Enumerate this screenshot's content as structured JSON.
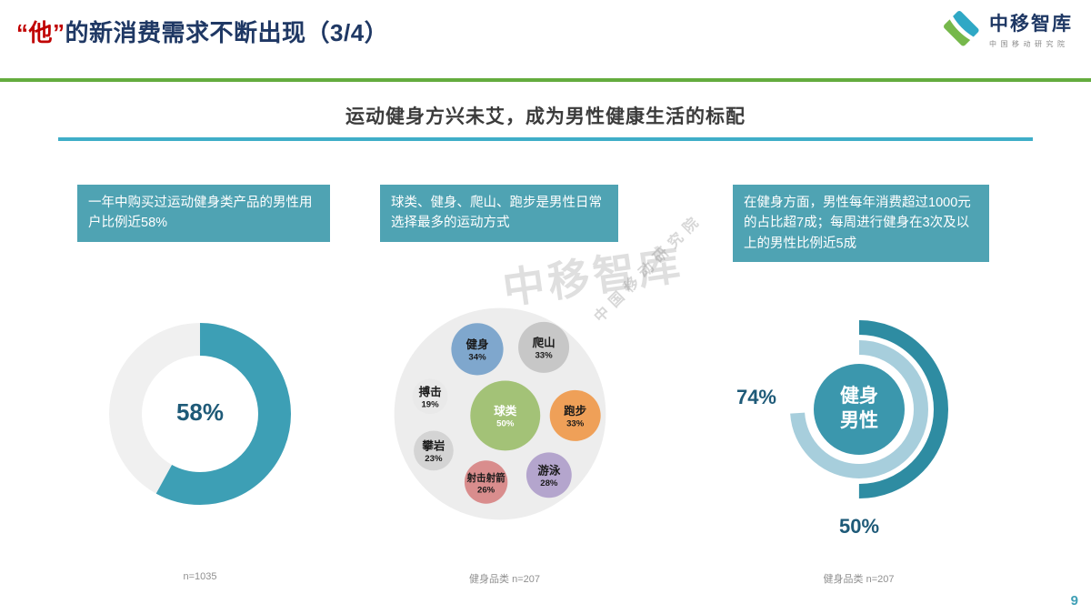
{
  "header": {
    "title_highlight": "“他”",
    "title_rest": "的新消费需求不断出现（3/4）",
    "logo": {
      "name": "中移智库",
      "subtitle": "中国移动研究院"
    }
  },
  "subtitle": "运动健身方兴未艾，成为男性健康生活的标配",
  "watermark": {
    "line1": "中移智库",
    "line2": "中国移动研究院"
  },
  "page_number": "9",
  "panels": [
    {
      "headline": "一年中购买过运动健身类产品的男性用户比例近58%",
      "caption": "n=1035"
    },
    {
      "headline": "球类、健身、爬山、跑步是男性日常选择最多的运动方式",
      "caption": "健身品类 n=207"
    },
    {
      "headline": "在健身方面，男性每年消费超过1000元的占比超7成；每周进行健身在3次及以上的男性比例近5成",
      "caption": "健身品类 n=207"
    }
  ],
  "chart_data": [
    {
      "type": "pie",
      "subtype": "donut",
      "title": "一年中购买过运动健身类产品的男性用户比例",
      "value": 58,
      "center_label": "58%",
      "colors": {
        "filled": "#3D9FB5",
        "empty": "#F0F0F0"
      },
      "sample": "n=1035"
    },
    {
      "type": "scatter",
      "subtype": "bubble",
      "title": "男性日常选择最多的运动方式",
      "sample": "健身品类 n=207",
      "points": [
        {
          "label": "球类",
          "value": 50,
          "value_label": "50%",
          "color": "#A3C277",
          "text_color": "#ffffff"
        },
        {
          "label": "健身",
          "value": 34,
          "value_label": "34%",
          "color": "#7FA7CD",
          "text_color": "#1a1a1a"
        },
        {
          "label": "爬山",
          "value": 33,
          "value_label": "33%",
          "color": "#C7C7C7",
          "text_color": "#1a1a1a"
        },
        {
          "label": "跑步",
          "value": 33,
          "value_label": "33%",
          "color": "#EFA058",
          "text_color": "#1a1a1a"
        },
        {
          "label": "游泳",
          "value": 28,
          "value_label": "28%",
          "color": "#B4A5CD",
          "text_color": "#1a1a1a"
        },
        {
          "label": "射击射箭",
          "value": 26,
          "value_label": "26%",
          "color": "#D98D8D",
          "text_color": "#1a1a1a"
        },
        {
          "label": "攀岩",
          "value": 23,
          "value_label": "23%",
          "color": "#D4D4D4",
          "text_color": "#1a1a1a"
        },
        {
          "label": "搏击",
          "value": 19,
          "value_label": "19%",
          "color": "#E9E9E9",
          "text_color": "#1a1a1a"
        }
      ]
    },
    {
      "type": "pie",
      "subtype": "double-donut",
      "title": "健身男性消费与频次",
      "sample": "健身品类 n=207",
      "center_label_line1": "健身",
      "center_label_line2": "男性",
      "center_color": "#3B97AD",
      "series": [
        {
          "name": "每周进行健身3次及以上的男性比例",
          "value": 50,
          "label": "50%",
          "color": "#2E8CA2",
          "ring": "outer"
        },
        {
          "name": "每年健身消费超过1000元的占比",
          "value": 74,
          "label": "74%",
          "color": "#A7CEDC",
          "ring": "inner"
        }
      ]
    }
  ]
}
